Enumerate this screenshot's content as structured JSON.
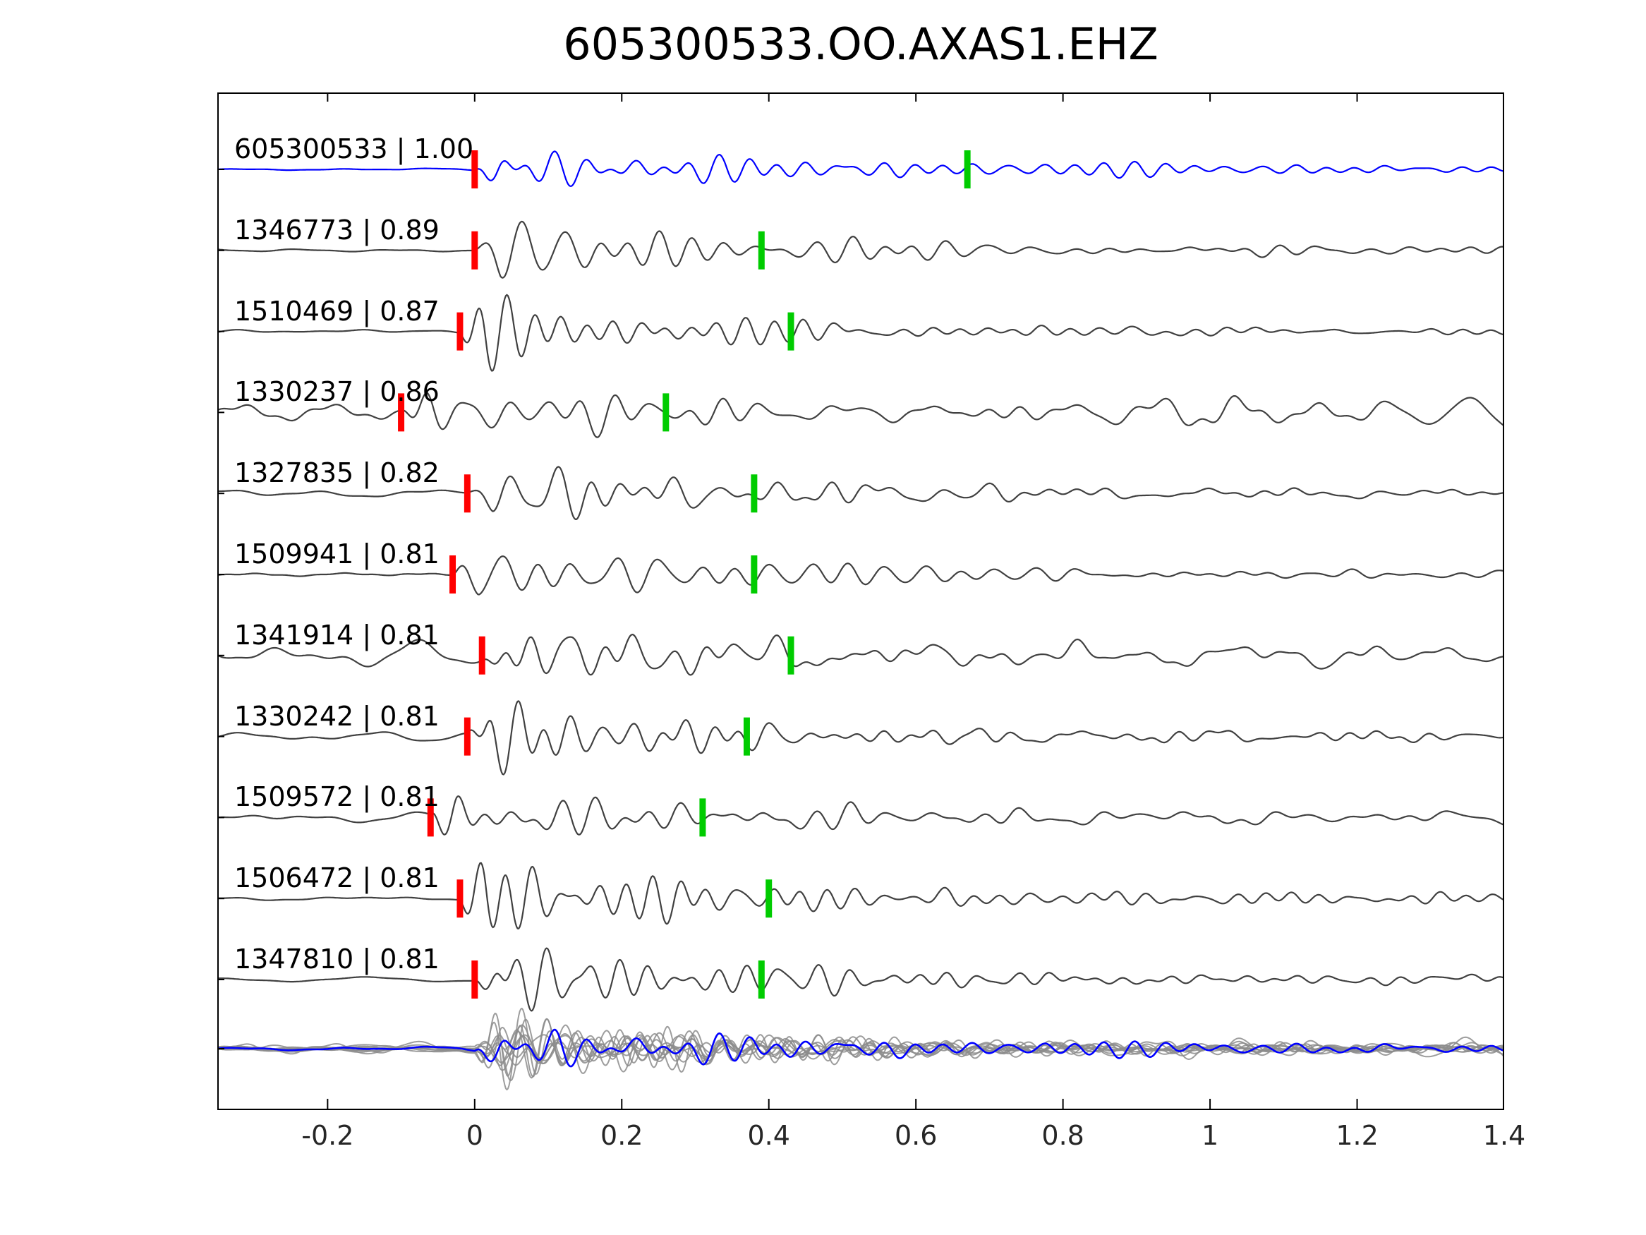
{
  "title": "605300533.OO.AXAS1.EHZ",
  "chart_data": {
    "type": "line",
    "title": "605300533.OO.AXAS1.EHZ",
    "xlabel": "",
    "ylabel": "",
    "xlim": [
      -0.35,
      1.4
    ],
    "grid": false,
    "legend": "none",
    "x_ticks": [
      {
        "value": -0.2,
        "label": "-0.2"
      },
      {
        "value": 0,
        "label": "0"
      },
      {
        "value": 0.2,
        "label": "0.2"
      },
      {
        "value": 0.4,
        "label": "0.4"
      },
      {
        "value": 0.6,
        "label": "0.6"
      },
      {
        "value": 0.8,
        "label": "0.8"
      },
      {
        "value": 1,
        "label": "1"
      },
      {
        "value": 1.2,
        "label": "1.2"
      },
      {
        "value": 1.4,
        "label": "1.4"
      }
    ],
    "colors": {
      "template_trace": "#0000ff",
      "trace": "#404040",
      "stack_gray": "#8c8c8c",
      "p_pick": "#ff0000",
      "s_pick": "#00cc00",
      "axis": "#000000",
      "tick_label": "#262626"
    },
    "traces": [
      {
        "id": "605300533",
        "cc": 1.0,
        "label": "605300533 | 1.00",
        "is_template": true,
        "p_pick": 0.0,
        "s_pick": 0.67,
        "noise": 0.03,
        "seed": 11
      },
      {
        "id": "1346773",
        "cc": 0.89,
        "label": "1346773 | 0.89",
        "is_template": false,
        "p_pick": 0.0,
        "s_pick": 0.39,
        "noise": 0.05,
        "seed": 22
      },
      {
        "id": "1510469",
        "cc": 0.87,
        "label": "1510469 | 0.87",
        "is_template": false,
        "p_pick": -0.02,
        "s_pick": 0.43,
        "noise": 0.06,
        "seed": 33
      },
      {
        "id": "1330237",
        "cc": 0.86,
        "label": "1330237 | 0.86",
        "is_template": false,
        "p_pick": -0.1,
        "s_pick": 0.26,
        "noise": 0.3,
        "seed": 44
      },
      {
        "id": "1327835",
        "cc": 0.82,
        "label": "1327835 | 0.82",
        "is_template": false,
        "p_pick": -0.01,
        "s_pick": 0.38,
        "noise": 0.1,
        "seed": 55
      },
      {
        "id": "1509941",
        "cc": 0.81,
        "label": "1509941 | 0.81",
        "is_template": false,
        "p_pick": -0.03,
        "s_pick": 0.38,
        "noise": 0.05,
        "seed": 66
      },
      {
        "id": "1341914",
        "cc": 0.81,
        "label": "1341914 | 0.81",
        "is_template": false,
        "p_pick": 0.01,
        "s_pick": 0.43,
        "noise": 0.28,
        "seed": 77
      },
      {
        "id": "1330242",
        "cc": 0.81,
        "label": "1330242 | 0.81",
        "is_template": false,
        "p_pick": -0.01,
        "s_pick": 0.37,
        "noise": 0.1,
        "seed": 88
      },
      {
        "id": "1509572",
        "cc": 0.81,
        "label": "1509572 | 0.81",
        "is_template": false,
        "p_pick": -0.06,
        "s_pick": 0.31,
        "noise": 0.12,
        "seed": 99
      },
      {
        "id": "1506472",
        "cc": 0.81,
        "label": "1506472 | 0.81",
        "is_template": false,
        "p_pick": -0.02,
        "s_pick": 0.4,
        "noise": 0.06,
        "seed": 110
      },
      {
        "id": "1347810",
        "cc": 0.81,
        "label": "1347810 | 0.81",
        "is_template": false,
        "p_pick": 0.0,
        "s_pick": 0.39,
        "noise": 0.05,
        "seed": 121
      }
    ],
    "stack_row": {
      "aligned_at": 0,
      "template_overlay": true
    }
  }
}
